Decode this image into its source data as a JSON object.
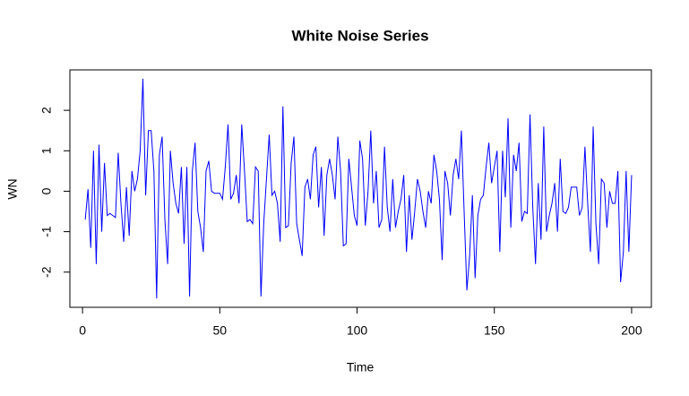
{
  "chart_data": {
    "type": "line",
    "title": "White Noise Series",
    "xlabel": "Time",
    "ylabel": "WN",
    "x": [
      1,
      2,
      3,
      4,
      5,
      6,
      7,
      8,
      9,
      10,
      11,
      12,
      13,
      14,
      15,
      16,
      17,
      18,
      19,
      20,
      21,
      22,
      23,
      24,
      25,
      26,
      27,
      28,
      29,
      30,
      31,
      32,
      33,
      34,
      35,
      36,
      37,
      38,
      39,
      40,
      41,
      42,
      43,
      44,
      45,
      46,
      47,
      48,
      49,
      50,
      51,
      52,
      53,
      54,
      55,
      56,
      57,
      58,
      59,
      60,
      61,
      62,
      63,
      64,
      65,
      66,
      67,
      68,
      69,
      70,
      71,
      72,
      73,
      74,
      75,
      76,
      77,
      78,
      79,
      80,
      81,
      82,
      83,
      84,
      85,
      86,
      87,
      88,
      89,
      90,
      91,
      92,
      93,
      94,
      95,
      96,
      97,
      98,
      99,
      100,
      101,
      102,
      103,
      104,
      105,
      106,
      107,
      108,
      109,
      110,
      111,
      112,
      113,
      114,
      115,
      116,
      117,
      118,
      119,
      120,
      121,
      122,
      123,
      124,
      125,
      126,
      127,
      128,
      129,
      130,
      131,
      132,
      133,
      134,
      135,
      136,
      137,
      138,
      139,
      140,
      141,
      142,
      143,
      144,
      145,
      146,
      147,
      148,
      149,
      150,
      151,
      152,
      153,
      154,
      155,
      156,
      157,
      158,
      159,
      160,
      161,
      162,
      163,
      164,
      165,
      166,
      167,
      168,
      169,
      170,
      171,
      172,
      173,
      174,
      175,
      176,
      177,
      178,
      179,
      180,
      181,
      182,
      183,
      184,
      185,
      186,
      187,
      188,
      189,
      190,
      191,
      192,
      193,
      194,
      195,
      196,
      197,
      198,
      199,
      200
    ],
    "series": [
      {
        "name": "WN",
        "color": "#0000ff",
        "values": [
          -0.7,
          0.05,
          -1.4,
          1.0,
          -1.8,
          1.15,
          -1.0,
          0.7,
          -0.6,
          -0.55,
          -0.6,
          -0.65,
          0.95,
          -0.3,
          -1.25,
          0.1,
          -1.1,
          0.5,
          0.0,
          0.3,
          1.0,
          2.78,
          -0.1,
          1.5,
          1.5,
          0.5,
          -2.65,
          0.9,
          1.35,
          -0.7,
          -1.8,
          1.0,
          0.2,
          -0.3,
          -0.55,
          0.6,
          -1.3,
          0.6,
          -2.6,
          0.5,
          1.2,
          -0.5,
          -0.9,
          -1.5,
          0.5,
          0.75,
          0.0,
          -0.05,
          -0.05,
          -0.05,
          -0.2,
          0.6,
          1.65,
          -0.2,
          -0.05,
          0.4,
          -0.3,
          1.65,
          0.5,
          -0.75,
          -0.7,
          -0.8,
          0.6,
          0.5,
          -2.6,
          -0.8,
          0.3,
          1.4,
          -0.1,
          0.0,
          -0.3,
          -1.25,
          2.1,
          -0.9,
          -0.85,
          0.7,
          1.35,
          -0.8,
          -1.2,
          -1.6,
          0.1,
          0.3,
          -0.2,
          0.9,
          1.1,
          -0.4,
          0.6,
          -1.1,
          0.4,
          0.8,
          0.4,
          -0.2,
          1.35,
          0.5,
          -1.35,
          -1.3,
          0.8,
          0.1,
          -0.6,
          -0.85,
          1.25,
          0.8,
          -0.85,
          0.0,
          1.5,
          -0.3,
          0.5,
          -0.9,
          -0.7,
          1.1,
          -0.4,
          -1.0,
          0.3,
          -0.9,
          -0.5,
          -0.2,
          0.4,
          -1.5,
          -0.1,
          -1.2,
          -0.5,
          0.3,
          0.0,
          -0.5,
          -0.9,
          0.0,
          -0.3,
          0.9,
          0.5,
          -0.2,
          -1.7,
          0.5,
          0.2,
          -0.6,
          0.4,
          0.8,
          0.3,
          1.5,
          -0.5,
          -2.45,
          -1.6,
          -0.1,
          -2.15,
          -0.6,
          -0.2,
          -0.1,
          0.6,
          1.2,
          0.2,
          0.6,
          1.0,
          -1.5,
          1.0,
          -0.15,
          1.8,
          -0.9,
          0.9,
          0.5,
          1.2,
          -0.75,
          -0.5,
          -0.55,
          1.9,
          -0.4,
          -1.8,
          0.2,
          -1.2,
          1.6,
          -1.0,
          -0.6,
          -0.3,
          0.2,
          -1.0,
          0.8,
          -0.5,
          -0.55,
          -0.4,
          0.1,
          0.1,
          0.1,
          -0.6,
          -0.4,
          1.1,
          -0.3,
          -1.5,
          1.6,
          -0.8,
          -1.8,
          0.3,
          0.2,
          -0.9,
          0.0,
          -0.3,
          -0.3,
          0.5,
          -2.25,
          -1.5,
          0.5,
          -1.5,
          0.4
        ]
      }
    ],
    "xlim": [
      -4.6,
      207.2
    ],
    "ylim": [
      -2.87,
      3.0
    ],
    "xticks": [
      0,
      50,
      100,
      150,
      200
    ],
    "yticks": [
      -2,
      -1,
      0,
      1,
      2
    ]
  }
}
